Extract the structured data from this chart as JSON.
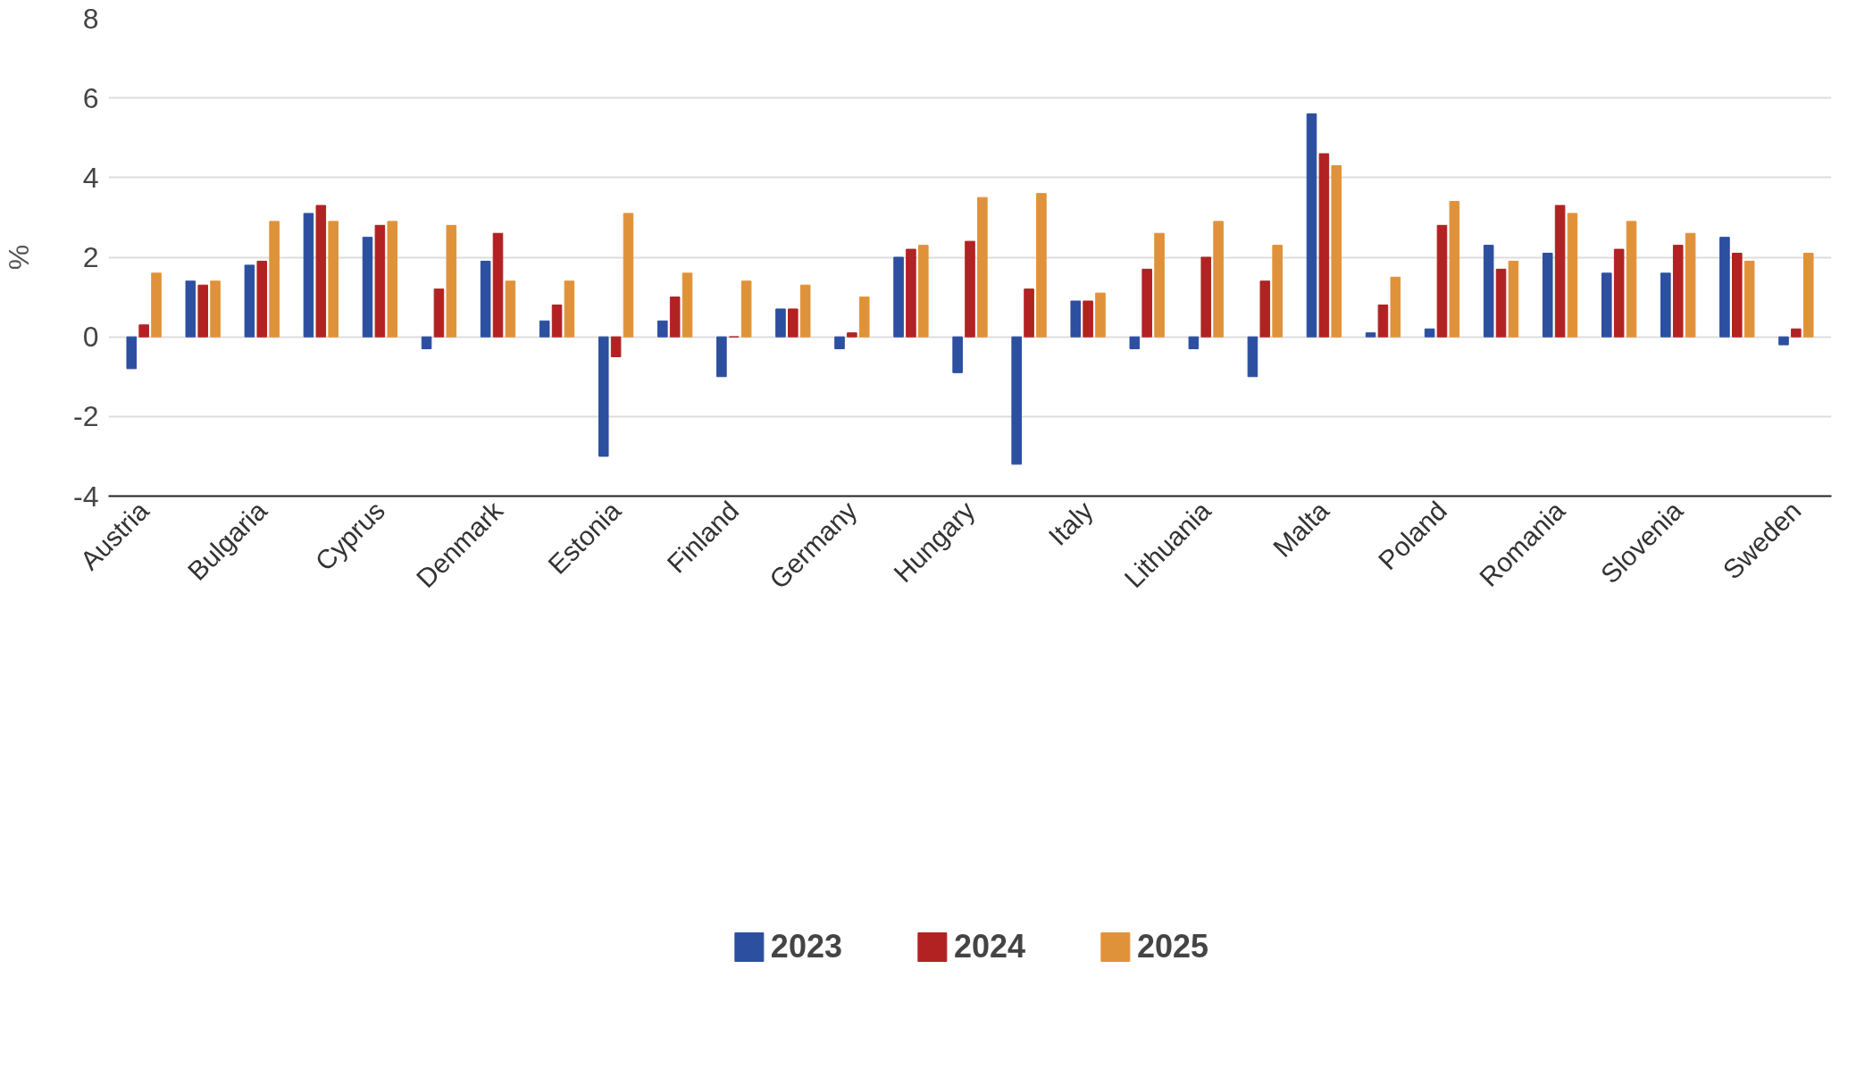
{
  "chart_data": {
    "type": "bar",
    "ylabel": "%",
    "categories": [
      "Austria",
      null,
      "Bulgaria",
      null,
      "Cyprus",
      null,
      "Denmark",
      null,
      "Estonia",
      null,
      "Finland",
      null,
      "Germany",
      null,
      "Hungary",
      null,
      "Italy",
      null,
      "Lithuania",
      null,
      "Malta",
      null,
      "Poland",
      null,
      "Romania",
      null,
      "Slovenia",
      null,
      "Sweden"
    ],
    "series": [
      {
        "name": "2023",
        "color": "#2c4fa0",
        "values": [
          -0.8,
          1.4,
          1.8,
          3.1,
          2.5,
          -0.3,
          1.9,
          0.4,
          -3.0,
          0.4,
          -1.0,
          0.7,
          -0.3,
          2.0,
          -0.9,
          -3.2,
          0.9,
          -0.3,
          -0.3,
          -1.0,
          5.6,
          0.1,
          0.2,
          2.3,
          2.1,
          1.6,
          1.6,
          2.5,
          -0.2
        ]
      },
      {
        "name": "2024",
        "color": "#b22222",
        "values": [
          0.3,
          1.3,
          1.9,
          3.3,
          2.8,
          1.2,
          2.6,
          0.8,
          -0.5,
          1.0,
          0,
          0.7,
          0.1,
          2.2,
          2.4,
          1.2,
          0.9,
          1.7,
          2.0,
          1.4,
          4.6,
          0.8,
          2.8,
          1.7,
          3.3,
          2.2,
          2.3,
          2.1,
          0.2
        ]
      },
      {
        "name": "2025",
        "color": "#e0923a",
        "values": [
          1.6,
          1.4,
          2.9,
          2.9,
          2.9,
          2.8,
          1.4,
          1.4,
          3.1,
          1.6,
          1.4,
          1.3,
          1.0,
          2.3,
          3.5,
          3.6,
          1.1,
          2.6,
          2.9,
          2.3,
          4.3,
          1.5,
          3.4,
          1.9,
          3.1,
          2.9,
          2.6,
          1.9,
          2.1
        ]
      }
    ],
    "ylim": [
      -4,
      8
    ],
    "yticks": [
      -4,
      -2,
      0,
      2,
      4,
      6,
      8
    ],
    "grid": "y",
    "legend": "bottom"
  }
}
